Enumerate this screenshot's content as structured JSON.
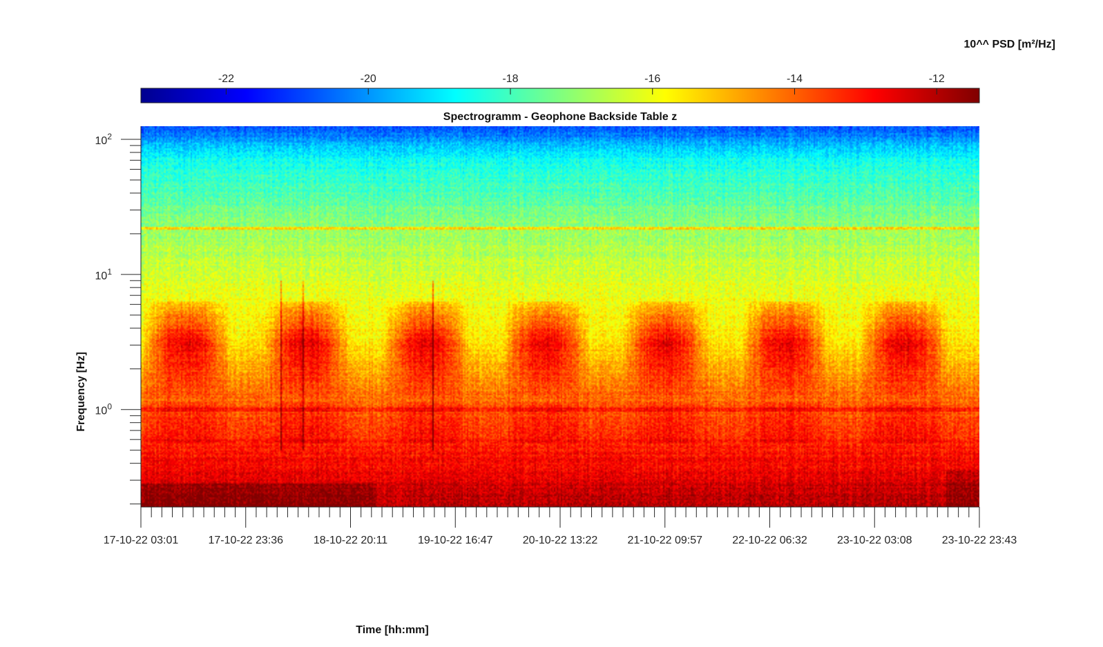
{
  "chart_data": {
    "type": "heatmap",
    "title": "Spectrogramm - Geophone Backside Table z",
    "xlabel": "Time [hh:mm]",
    "ylabel": "Frequency [Hz]",
    "colorbar": {
      "label": "10^^ PSD [m²/Hz]",
      "ticks": [
        -22,
        -20,
        -18,
        -16,
        -14,
        -12
      ],
      "range": [
        -23.2,
        -11.4
      ],
      "colormap": "jet",
      "orientation": "horizontal",
      "placement": "top"
    },
    "x_axis": {
      "tick_labels": [
        "17-10-22 03:01",
        "17-10-22 23:36",
        "18-10-22 20:11",
        "19-10-22 16:47",
        "20-10-22 13:22",
        "21-10-22 09:57",
        "22-10-22 06:32",
        "23-10-22 03:08",
        "23-10-22 23:43"
      ],
      "minor_ticks_per_major": 10
    },
    "y_axis": {
      "scale": "log",
      "range": [
        0.19,
        125
      ],
      "major_ticks": [
        {
          "value": 1,
          "base": "10",
          "exp": "0"
        },
        {
          "value": 10,
          "base": "10",
          "exp": "1"
        },
        {
          "value": 100,
          "base": "10",
          "exp": "2"
        }
      ]
    },
    "features": {
      "daily_active_periods": 7,
      "active_band_hz": [
        2,
        5
      ],
      "band_lines_hz": [
        1.0,
        22
      ],
      "background_trend": "PSD decreases from about -13 at 0.2 Hz to about -20 at 120 Hz"
    }
  }
}
